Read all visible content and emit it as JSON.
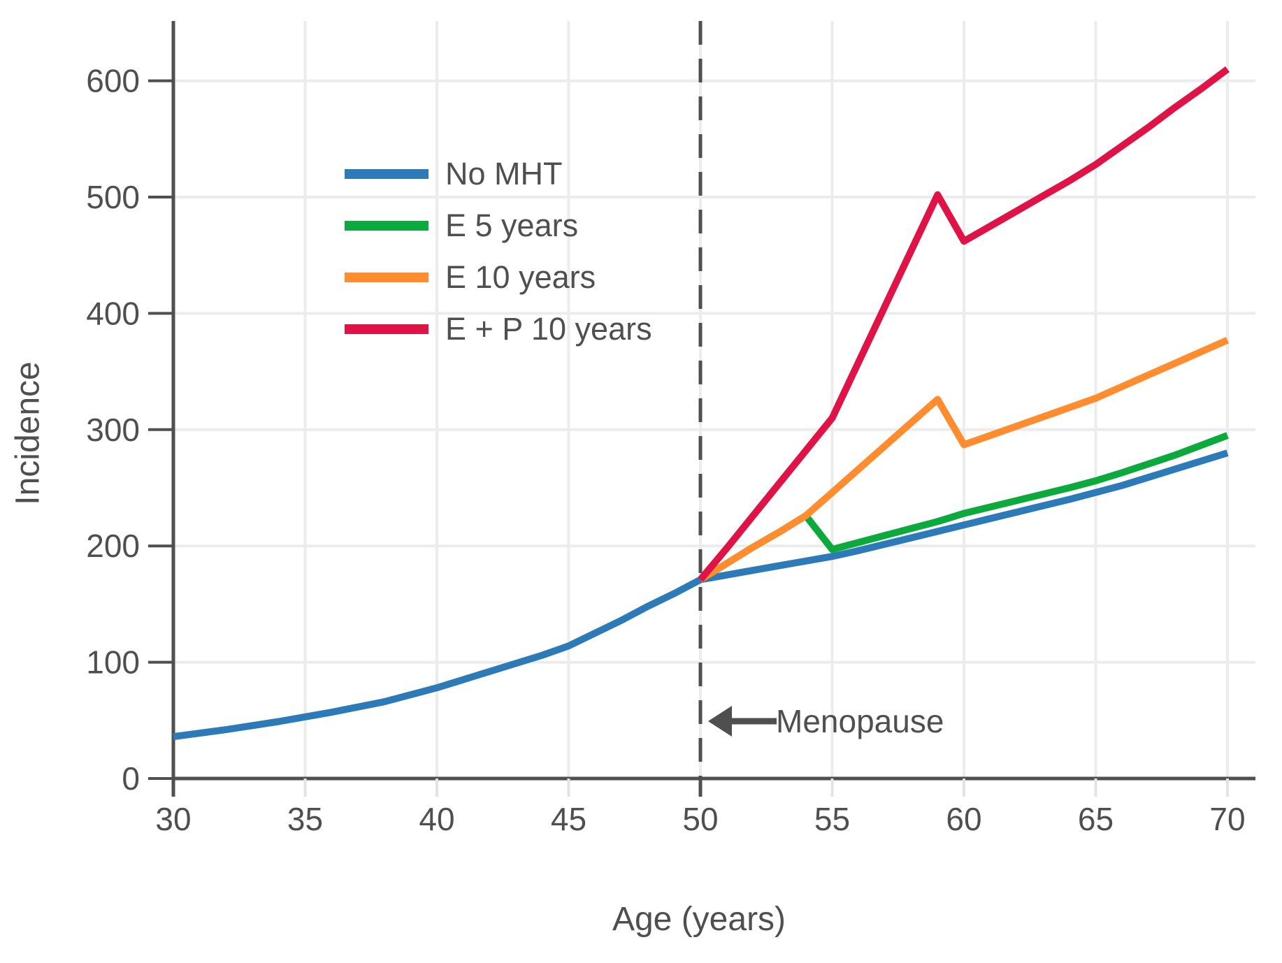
{
  "figure": {
    "background_color": "#ffffff",
    "text_color": "#4f4f4f",
    "grid_color": "#ececec",
    "axis_color": "#4f4f4f",
    "x_tick_color": "#e3e3e3"
  },
  "annotation": {
    "text": "Menopause",
    "arrow_direction": "left",
    "line_x": 50,
    "line_style": "dashed"
  },
  "chart_data": {
    "type": "line",
    "title": "",
    "xlabel": "Age (years)",
    "ylabel": "Incidence",
    "xlim": [
      30,
      71
    ],
    "ylim": [
      0,
      650
    ],
    "x_ticks": [
      30,
      35,
      40,
      45,
      50,
      55,
      60,
      65,
      70
    ],
    "y_ticks": [
      0,
      100,
      200,
      300,
      400,
      500,
      600
    ],
    "grid": true,
    "legend_position": "upper-left-inside",
    "series": [
      {
        "name": "No MHT",
        "color": "#2C7BB8",
        "points": [
          [
            30,
            36
          ],
          [
            32,
            42
          ],
          [
            34,
            49
          ],
          [
            35,
            53
          ],
          [
            36,
            57
          ],
          [
            38,
            66
          ],
          [
            40,
            78
          ],
          [
            42,
            92
          ],
          [
            44,
            106
          ],
          [
            45,
            114
          ],
          [
            46,
            125
          ],
          [
            47,
            136
          ],
          [
            48,
            148
          ],
          [
            49,
            159
          ],
          [
            50,
            171
          ],
          [
            52,
            179
          ],
          [
            54,
            187
          ],
          [
            55,
            191
          ],
          [
            56,
            196
          ],
          [
            58,
            207
          ],
          [
            60,
            218
          ],
          [
            62,
            229
          ],
          [
            64,
            240
          ],
          [
            65,
            246
          ],
          [
            66,
            252
          ],
          [
            68,
            266
          ],
          [
            70,
            280
          ]
        ]
      },
      {
        "name": "E 5 years",
        "color": "#0CA93C",
        "points": [
          [
            50,
            171
          ],
          [
            51,
            185
          ],
          [
            52,
            199
          ],
          [
            53,
            212
          ],
          [
            54,
            226
          ],
          [
            55,
            197
          ],
          [
            56,
            203
          ],
          [
            57,
            209
          ],
          [
            58,
            215
          ],
          [
            59,
            221
          ],
          [
            60,
            228
          ],
          [
            62,
            239
          ],
          [
            64,
            250
          ],
          [
            65,
            256
          ],
          [
            66,
            263
          ],
          [
            68,
            278
          ],
          [
            70,
            295
          ]
        ]
      },
      {
        "name": "E 10 years",
        "color": "#FF8C2E",
        "points": [
          [
            50,
            171
          ],
          [
            51,
            185
          ],
          [
            52,
            199
          ],
          [
            53,
            212
          ],
          [
            54,
            226
          ],
          [
            55,
            246
          ],
          [
            56,
            266
          ],
          [
            57,
            286
          ],
          [
            58,
            306
          ],
          [
            59,
            326
          ],
          [
            60,
            287
          ],
          [
            61,
            295
          ],
          [
            62,
            303
          ],
          [
            63,
            311
          ],
          [
            64,
            319
          ],
          [
            65,
            327
          ],
          [
            66,
            337
          ],
          [
            67,
            347
          ],
          [
            68,
            357
          ],
          [
            69,
            367
          ],
          [
            70,
            377
          ]
        ]
      },
      {
        "name": "E + P 10 years",
        "color": "#E01347",
        "points": [
          [
            50,
            171
          ],
          [
            51,
            198
          ],
          [
            52,
            226
          ],
          [
            53,
            254
          ],
          [
            54,
            282
          ],
          [
            55,
            310
          ],
          [
            56,
            358
          ],
          [
            57,
            406
          ],
          [
            58,
            454
          ],
          [
            59,
            502
          ],
          [
            60,
            462
          ],
          [
            61,
            475
          ],
          [
            62,
            488
          ],
          [
            63,
            501
          ],
          [
            64,
            514
          ],
          [
            65,
            528
          ],
          [
            66,
            544
          ],
          [
            67,
            560
          ],
          [
            68,
            577
          ],
          [
            69,
            593
          ],
          [
            70,
            610
          ]
        ]
      }
    ]
  }
}
